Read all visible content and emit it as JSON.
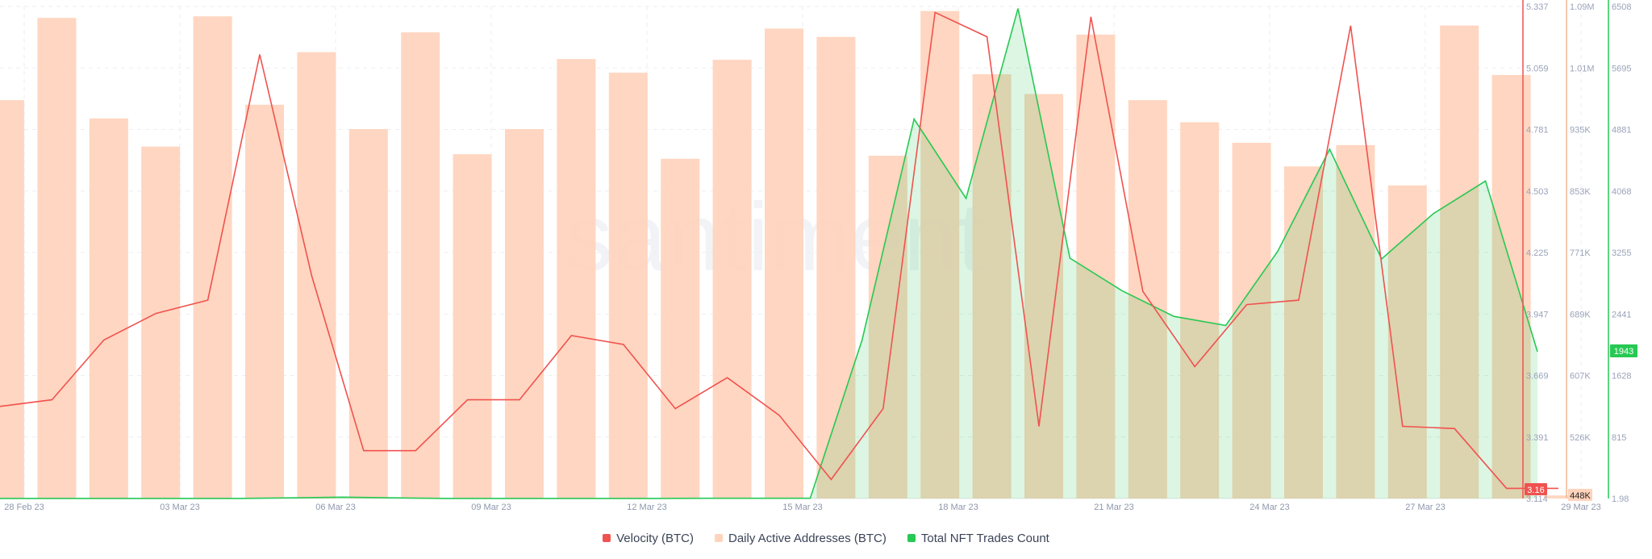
{
  "watermark": "santiment",
  "legend": [
    {
      "label": "Velocity (BTC)",
      "color": "#f0524f"
    },
    {
      "label": "Daily Active Addresses (BTC)",
      "color": "#ffd3bc"
    },
    {
      "label": "Total NFT Trades Count",
      "color": "#26c953"
    }
  ],
  "badges": {
    "velocity_last": "3.16",
    "addresses_last": "448K",
    "nft_last": "1943"
  },
  "chart_data": {
    "type": "bar",
    "x_ticks": [
      "28 Feb 23",
      "03 Mar 23",
      "06 Mar 23",
      "09 Mar 23",
      "12 Mar 23",
      "15 Mar 23",
      "18 Mar 23",
      "21 Mar 23",
      "24 Mar 23",
      "27 Mar 23",
      "29 Mar 23"
    ],
    "dates": [
      "27 Feb 23",
      "28 Feb 23",
      "01 Mar 23",
      "02 Mar 23",
      "03 Mar 23",
      "04 Mar 23",
      "05 Mar 23",
      "06 Mar 23",
      "07 Mar 23",
      "08 Mar 23",
      "09 Mar 23",
      "10 Mar 23",
      "11 Mar 23",
      "12 Mar 23",
      "13 Mar 23",
      "14 Mar 23",
      "15 Mar 23",
      "16 Mar 23",
      "17 Mar 23",
      "18 Mar 23",
      "19 Mar 23",
      "20 Mar 23",
      "21 Mar 23",
      "22 Mar 23",
      "23 Mar 23",
      "24 Mar 23",
      "25 Mar 23",
      "26 Mar 23",
      "27 Mar 23",
      "28 Mar 23",
      "29 Mar 23"
    ],
    "series": [
      {
        "name": "Velocity (BTC)",
        "kind": "line",
        "axis": "velocity",
        "color": "#f0524f",
        "values": [
          3.53,
          3.56,
          3.83,
          3.95,
          4.01,
          5.12,
          4.12,
          3.33,
          3.33,
          3.56,
          3.56,
          3.85,
          3.81,
          3.52,
          3.66,
          3.49,
          3.2,
          3.52,
          5.31,
          5.2,
          3.44,
          5.29,
          4.05,
          3.71,
          3.99,
          4.01,
          5.25,
          3.44,
          3.43,
          3.16,
          3.16
        ]
      },
      {
        "name": "Daily Active Addresses (BTC)",
        "kind": "bar",
        "axis": "addresses",
        "color": "#ffd3bc",
        "values": [
          967000,
          1075000,
          943000,
          906000,
          1077000,
          961000,
          1030000,
          929000,
          1056000,
          896000,
          929000,
          1021000,
          1003000,
          890000,
          1020000,
          1061000,
          1050000,
          894000,
          1084000,
          1001000,
          975000,
          1053000,
          967000,
          938000,
          911000,
          880000,
          908000,
          855000,
          1065000,
          1000000,
          448000
        ]
      },
      {
        "name": "Total NFT Trades Count",
        "kind": "area",
        "axis": "nft",
        "color": "#26c953",
        "values": [
          3,
          3,
          3,
          3,
          3,
          3,
          10,
          20,
          10,
          3,
          3,
          3,
          3,
          3,
          5,
          5,
          5,
          2100,
          5020,
          3970,
          6480,
          3180,
          2750,
          2410,
          2290,
          3270,
          4620,
          3170,
          3770,
          4200,
          1943
        ]
      }
    ],
    "axes": [
      {
        "id": "velocity",
        "color": "#f0524f",
        "ticks": [
          "5.337",
          "5.059",
          "4.781",
          "4.503",
          "4.225",
          "3.947",
          "3.669",
          "3.391",
          "3.114"
        ],
        "range": [
          3.114,
          5.337
        ]
      },
      {
        "id": "addresses",
        "color": "#f4b594",
        "ticks": [
          "1.09M",
          "1.01M",
          "935K",
          "853K",
          "771K",
          "689K",
          "607K",
          "526K"
        ],
        "range": [
          444000,
          1090000
        ]
      },
      {
        "id": "nft",
        "color": "#26c953",
        "ticks": [
          "6508",
          "5695",
          "4881",
          "4068",
          "3255",
          "2441",
          "1628",
          "815",
          "1.98"
        ],
        "range": [
          1.98,
          6508
        ]
      }
    ],
    "grid": true,
    "legend_position": "bottom"
  }
}
